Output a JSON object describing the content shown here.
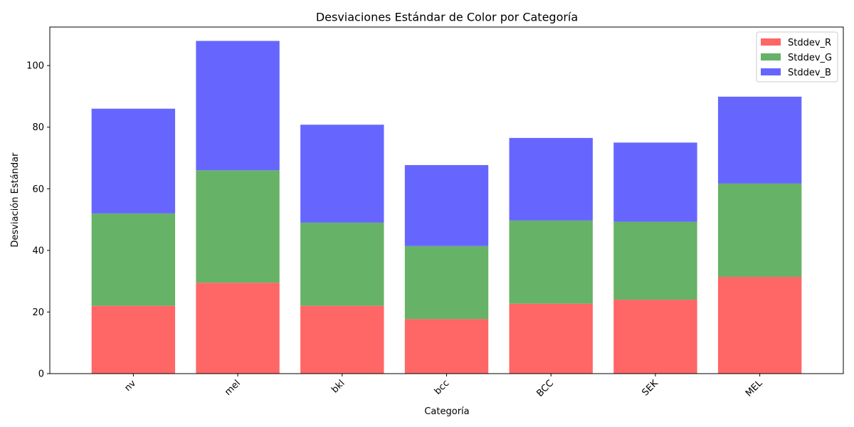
{
  "chart_data": {
    "type": "bar",
    "stacked": true,
    "title": "Desviaciones Estándar de Color por Categoría",
    "xlabel": "Categoría",
    "ylabel": "Desviación Estándar",
    "categories": [
      "nv",
      "mel",
      "bkl",
      "bcc",
      "BCC",
      "SEK",
      "MEL"
    ],
    "series": [
      {
        "name": "Stddev_R",
        "color": "#ff6666",
        "values": [
          22.0,
          29.5,
          22.0,
          17.7,
          22.7,
          24.0,
          31.4
        ]
      },
      {
        "name": "Stddev_G",
        "color": "#66b266",
        "values": [
          30.0,
          36.5,
          27.0,
          23.7,
          27.0,
          25.3,
          30.3
        ]
      },
      {
        "name": "Stddev_B",
        "color": "#6666ff",
        "values": [
          34.0,
          42.0,
          31.8,
          26.3,
          26.8,
          25.7,
          28.2
        ]
      }
    ],
    "ylim": [
      0,
      112.5
    ],
    "yticks": [
      0,
      20,
      40,
      60,
      80,
      100
    ],
    "legend": "top-right",
    "grid": false,
    "x_tick_rotation": 45
  }
}
